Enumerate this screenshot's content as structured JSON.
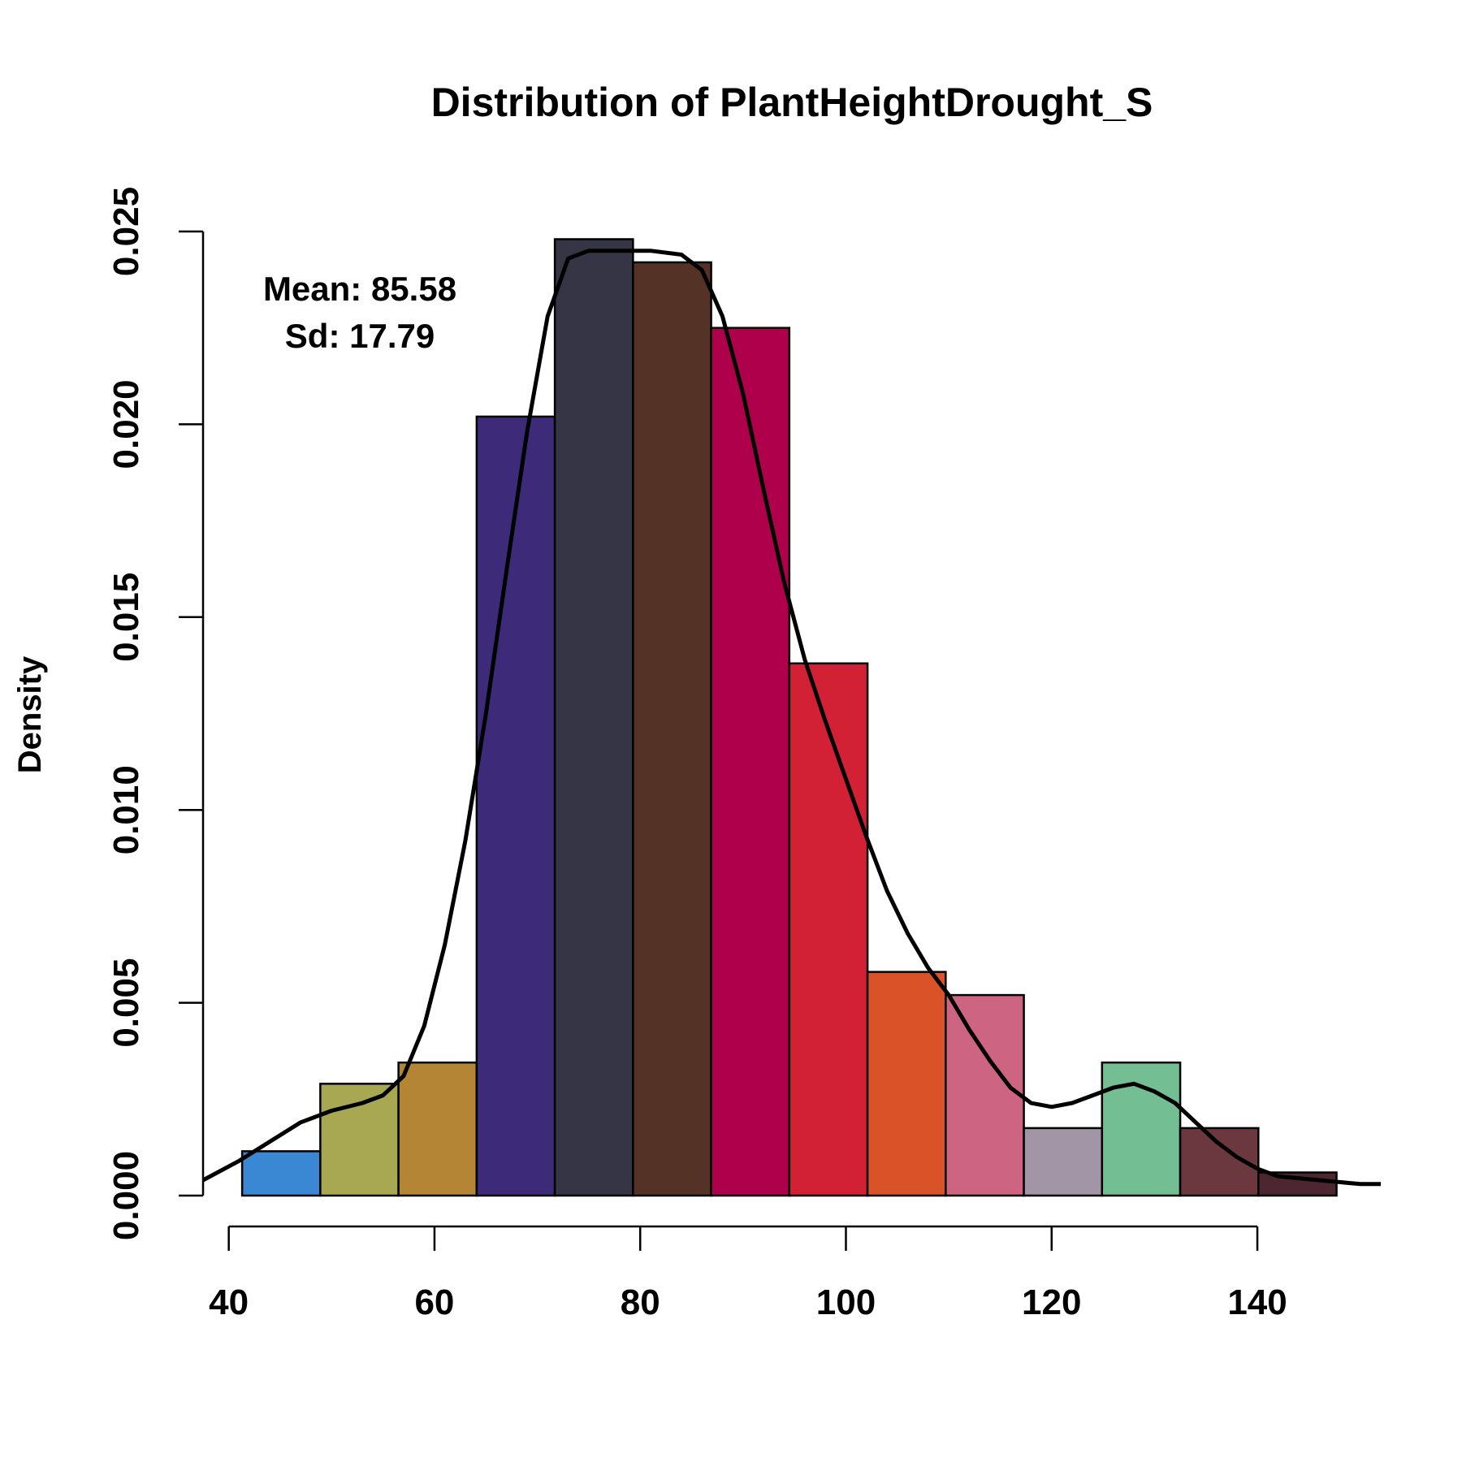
{
  "chart_data": {
    "type": "bar",
    "title": "Distribution of PlantHeightDrought_S",
    "xlabel": "",
    "ylabel": "Density",
    "xlim": [
      37.5,
      152
    ],
    "ylim": [
      0,
      0.025
    ],
    "x_ticks": [
      40,
      60,
      80,
      100,
      120,
      140
    ],
    "y_ticks": [
      0.0,
      0.005,
      0.01,
      0.015,
      0.02,
      0.025
    ],
    "y_tick_labels": [
      "0.000",
      "0.005",
      "0.010",
      "0.015",
      "0.020",
      "0.025"
    ],
    "bins": [
      {
        "x0": 41.3,
        "x1": 48.9,
        "density": 0.00115,
        "color": "#3a87d3"
      },
      {
        "x0": 48.9,
        "x1": 56.5,
        "density": 0.0029,
        "color": "#a8a853"
      },
      {
        "x0": 56.5,
        "x1": 64.1,
        "density": 0.00345,
        "color": "#b38535"
      },
      {
        "x0": 64.1,
        "x1": 71.7,
        "density": 0.0202,
        "color": "#3d2b7a"
      },
      {
        "x0": 71.7,
        "x1": 79.3,
        "density": 0.0248,
        "color": "#353545"
      },
      {
        "x0": 79.3,
        "x1": 86.9,
        "density": 0.0242,
        "color": "#543226"
      },
      {
        "x0": 86.9,
        "x1": 94.5,
        "density": 0.0225,
        "color": "#af004b"
      },
      {
        "x0": 94.5,
        "x1": 102.1,
        "density": 0.0138,
        "color": "#d22035"
      },
      {
        "x0": 102.1,
        "x1": 109.7,
        "density": 0.0058,
        "color": "#da5227"
      },
      {
        "x0": 109.7,
        "x1": 117.3,
        "density": 0.0052,
        "color": "#cc6482"
      },
      {
        "x0": 117.3,
        "x1": 124.9,
        "density": 0.00175,
        "color": "#a296a6"
      },
      {
        "x0": 124.9,
        "x1": 132.5,
        "density": 0.00345,
        "color": "#73be93"
      },
      {
        "x0": 132.5,
        "x1": 140.1,
        "density": 0.00175,
        "color": "#6b3840"
      },
      {
        "x0": 140.1,
        "x1": 147.7,
        "density": 0.0006,
        "color": "#4d2730"
      }
    ],
    "density_curve": [
      [
        37.5,
        0.0004
      ],
      [
        41,
        0.0009
      ],
      [
        44,
        0.0014
      ],
      [
        47,
        0.0019
      ],
      [
        50,
        0.0022
      ],
      [
        53,
        0.0024
      ],
      [
        55,
        0.0026
      ],
      [
        57,
        0.0031
      ],
      [
        59,
        0.0044
      ],
      [
        61,
        0.0065
      ],
      [
        63,
        0.0092
      ],
      [
        65,
        0.0125
      ],
      [
        67,
        0.0162
      ],
      [
        69,
        0.0198
      ],
      [
        71,
        0.0228
      ],
      [
        73,
        0.0243
      ],
      [
        75,
        0.0245
      ],
      [
        78,
        0.0245
      ],
      [
        81,
        0.0245
      ],
      [
        84,
        0.0244
      ],
      [
        86,
        0.024
      ],
      [
        88,
        0.0228
      ],
      [
        90,
        0.0208
      ],
      [
        92,
        0.0183
      ],
      [
        94,
        0.0159
      ],
      [
        96,
        0.0139
      ],
      [
        98,
        0.0123
      ],
      [
        100,
        0.0108
      ],
      [
        102,
        0.0093
      ],
      [
        104,
        0.0079
      ],
      [
        106,
        0.0068
      ],
      [
        108,
        0.0059
      ],
      [
        110,
        0.0052
      ],
      [
        112,
        0.0043
      ],
      [
        114,
        0.0035
      ],
      [
        116,
        0.0028
      ],
      [
        118,
        0.0024
      ],
      [
        120,
        0.0023
      ],
      [
        122,
        0.0024
      ],
      [
        124,
        0.0026
      ],
      [
        126,
        0.0028
      ],
      [
        128,
        0.0029
      ],
      [
        130,
        0.0027
      ],
      [
        132,
        0.0024
      ],
      [
        134,
        0.0019
      ],
      [
        136,
        0.0014
      ],
      [
        138,
        0.001
      ],
      [
        140,
        0.0007
      ],
      [
        142,
        0.0005
      ],
      [
        144,
        0.00045
      ],
      [
        146,
        0.0004
      ],
      [
        148,
        0.00035
      ],
      [
        150,
        0.0003
      ],
      [
        152,
        0.0003
      ]
    ],
    "annotations": {
      "mean_text": "Mean: 85.58",
      "sd_text": "Sd: 17.79"
    },
    "grid": false,
    "curve_color": "#000000"
  }
}
